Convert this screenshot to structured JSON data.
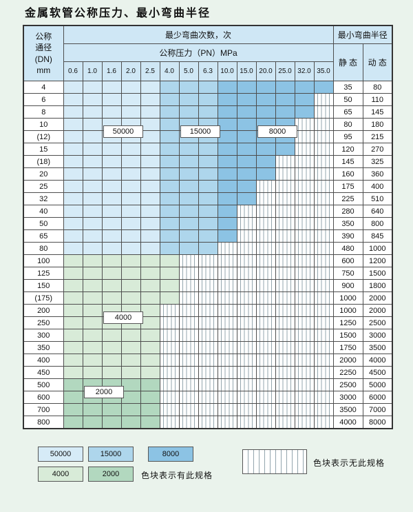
{
  "page": {
    "title": "金属软管公称压力、最小弯曲半径",
    "background_color": "#eaf3ec"
  },
  "table": {
    "header": {
      "dn_lines": [
        "公称",
        "通径",
        "(DN)",
        "mm"
      ],
      "bend_times_label": "最少弯曲次数，次",
      "pressure_label": "公称压力（PN）MPa",
      "min_radius_label": "最小弯曲半径",
      "static_label": "静 态",
      "dynamic_label": "动 态",
      "pressures": [
        "0.6",
        "1.0",
        "1.6",
        "2.0",
        "2.5",
        "4.0",
        "5.0",
        "6.3",
        "10.0",
        "15.0",
        "20.0",
        "25.0",
        "32.0",
        "35.0"
      ]
    },
    "zones": {
      "b1": {
        "label": "50000",
        "color": "#d6ebf7"
      },
      "b2": {
        "label": "15000",
        "color": "#aed6ec"
      },
      "b3": {
        "label": "8000",
        "color": "#8cc3e4"
      },
      "g1": {
        "label": "4000",
        "color": "#d8ebd8"
      },
      "g2": {
        "label": "2000",
        "color": "#b2d8bf"
      }
    },
    "no_spec_code": "x",
    "rows": [
      {
        "dn": "4",
        "static": "35",
        "dynamic": "80",
        "cells": [
          "b1",
          "b1",
          "b1",
          "b1",
          "b1",
          "b2",
          "b2",
          "b2",
          "b3",
          "b3",
          "b3",
          "b3",
          "b3",
          "b3"
        ]
      },
      {
        "dn": "6",
        "static": "50",
        "dynamic": "110",
        "cells": [
          "b1",
          "b1",
          "b1",
          "b1",
          "b1",
          "b2",
          "b2",
          "b2",
          "b3",
          "b3",
          "b3",
          "b3",
          "b3",
          "x"
        ]
      },
      {
        "dn": "8",
        "static": "65",
        "dynamic": "145",
        "cells": [
          "b1",
          "b1",
          "b1",
          "b1",
          "b1",
          "b2",
          "b2",
          "b2",
          "b3",
          "b3",
          "b3",
          "b3",
          "b3",
          "x"
        ]
      },
      {
        "dn": "10",
        "static": "80",
        "dynamic": "180",
        "cells": [
          "b1",
          "b1",
          "b1",
          "b1",
          "b1",
          "b2",
          "b2",
          "b2",
          "b3",
          "b3",
          "b3",
          "b3",
          "x",
          "x"
        ]
      },
      {
        "dn": "(12)",
        "static": "95",
        "dynamic": "215",
        "cells": [
          "b1",
          "b1",
          "b1",
          "b1",
          "b1",
          "b2",
          "b2",
          "b2",
          "b3",
          "b3",
          "b3",
          "b3",
          "x",
          "x"
        ]
      },
      {
        "dn": "15",
        "static": "120",
        "dynamic": "270",
        "cells": [
          "b1",
          "b1",
          "b1",
          "b1",
          "b1",
          "b2",
          "b2",
          "b2",
          "b3",
          "b3",
          "b3",
          "b3",
          "x",
          "x"
        ]
      },
      {
        "dn": "(18)",
        "static": "145",
        "dynamic": "325",
        "cells": [
          "b1",
          "b1",
          "b1",
          "b1",
          "b1",
          "b2",
          "b2",
          "b2",
          "b3",
          "b3",
          "b3",
          "x",
          "x",
          "x"
        ]
      },
      {
        "dn": "20",
        "static": "160",
        "dynamic": "360",
        "cells": [
          "b1",
          "b1",
          "b1",
          "b1",
          "b1",
          "b2",
          "b2",
          "b2",
          "b3",
          "b3",
          "b3",
          "x",
          "x",
          "x"
        ]
      },
      {
        "dn": "25",
        "static": "175",
        "dynamic": "400",
        "cells": [
          "b1",
          "b1",
          "b1",
          "b1",
          "b1",
          "b2",
          "b2",
          "b2",
          "b3",
          "b3",
          "x",
          "x",
          "x",
          "x"
        ]
      },
      {
        "dn": "32",
        "static": "225",
        "dynamic": "510",
        "cells": [
          "b1",
          "b1",
          "b1",
          "b1",
          "b1",
          "b2",
          "b2",
          "b2",
          "b3",
          "b3",
          "x",
          "x",
          "x",
          "x"
        ]
      },
      {
        "dn": "40",
        "static": "280",
        "dynamic": "640",
        "cells": [
          "b1",
          "b1",
          "b1",
          "b1",
          "b1",
          "b2",
          "b2",
          "b2",
          "b3",
          "x",
          "x",
          "x",
          "x",
          "x"
        ]
      },
      {
        "dn": "50",
        "static": "350",
        "dynamic": "800",
        "cells": [
          "b1",
          "b1",
          "b1",
          "b1",
          "b1",
          "b2",
          "b2",
          "b2",
          "b3",
          "x",
          "x",
          "x",
          "x",
          "x"
        ]
      },
      {
        "dn": "65",
        "static": "390",
        "dynamic": "845",
        "cells": [
          "b1",
          "b1",
          "b1",
          "b1",
          "b1",
          "b2",
          "b2",
          "b2",
          "b3",
          "x",
          "x",
          "x",
          "x",
          "x"
        ]
      },
      {
        "dn": "80",
        "static": "480",
        "dynamic": "1000",
        "cells": [
          "b1",
          "b1",
          "b1",
          "b1",
          "b1",
          "b2",
          "b2",
          "b2",
          "x",
          "x",
          "x",
          "x",
          "x",
          "x"
        ]
      },
      {
        "dn": "100",
        "static": "600",
        "dynamic": "1200",
        "cells": [
          "g1",
          "g1",
          "g1",
          "g1",
          "g1",
          "g1",
          "x",
          "x",
          "x",
          "x",
          "x",
          "x",
          "x",
          "x"
        ]
      },
      {
        "dn": "125",
        "static": "750",
        "dynamic": "1500",
        "cells": [
          "g1",
          "g1",
          "g1",
          "g1",
          "g1",
          "g1",
          "x",
          "x",
          "x",
          "x",
          "x",
          "x",
          "x",
          "x"
        ]
      },
      {
        "dn": "150",
        "static": "900",
        "dynamic": "1800",
        "cells": [
          "g1",
          "g1",
          "g1",
          "g1",
          "g1",
          "g1",
          "x",
          "x",
          "x",
          "x",
          "x",
          "x",
          "x",
          "x"
        ]
      },
      {
        "dn": "(175)",
        "static": "1000",
        "dynamic": "2000",
        "cells": [
          "g1",
          "g1",
          "g1",
          "g1",
          "g1",
          "g1",
          "x",
          "x",
          "x",
          "x",
          "x",
          "x",
          "x",
          "x"
        ]
      },
      {
        "dn": "200",
        "static": "1000",
        "dynamic": "2000",
        "cells": [
          "g1",
          "g1",
          "g1",
          "g1",
          "g1",
          "x",
          "x",
          "x",
          "x",
          "x",
          "x",
          "x",
          "x",
          "x"
        ]
      },
      {
        "dn": "250",
        "static": "1250",
        "dynamic": "2500",
        "cells": [
          "g1",
          "g1",
          "g1",
          "g1",
          "g1",
          "x",
          "x",
          "x",
          "x",
          "x",
          "x",
          "x",
          "x",
          "x"
        ]
      },
      {
        "dn": "300",
        "static": "1500",
        "dynamic": "3000",
        "cells": [
          "g1",
          "g1",
          "g1",
          "g1",
          "g1",
          "x",
          "x",
          "x",
          "x",
          "x",
          "x",
          "x",
          "x",
          "x"
        ]
      },
      {
        "dn": "350",
        "static": "1750",
        "dynamic": "3500",
        "cells": [
          "g1",
          "g1",
          "g1",
          "g1",
          "g1",
          "x",
          "x",
          "x",
          "x",
          "x",
          "x",
          "x",
          "x",
          "x"
        ]
      },
      {
        "dn": "400",
        "static": "2000",
        "dynamic": "4000",
        "cells": [
          "g1",
          "g1",
          "g1",
          "g1",
          "g1",
          "x",
          "x",
          "x",
          "x",
          "x",
          "x",
          "x",
          "x",
          "x"
        ]
      },
      {
        "dn": "450",
        "static": "2250",
        "dynamic": "4500",
        "cells": [
          "g1",
          "g1",
          "g1",
          "g1",
          "g1",
          "x",
          "x",
          "x",
          "x",
          "x",
          "x",
          "x",
          "x",
          "x"
        ]
      },
      {
        "dn": "500",
        "static": "2500",
        "dynamic": "5000",
        "cells": [
          "g2",
          "g2",
          "g2",
          "g2",
          "g2",
          "x",
          "x",
          "x",
          "x",
          "x",
          "x",
          "x",
          "x",
          "x"
        ]
      },
      {
        "dn": "600",
        "static": "3000",
        "dynamic": "6000",
        "cells": [
          "g2",
          "g2",
          "g2",
          "g2",
          "g2",
          "x",
          "x",
          "x",
          "x",
          "x",
          "x",
          "x",
          "x",
          "x"
        ]
      },
      {
        "dn": "700",
        "static": "3500",
        "dynamic": "7000",
        "cells": [
          "g2",
          "g2",
          "g2",
          "g2",
          "g2",
          "x",
          "x",
          "x",
          "x",
          "x",
          "x",
          "x",
          "x",
          "x"
        ]
      },
      {
        "dn": "800",
        "static": "4000",
        "dynamic": "8000",
        "cells": [
          "g2",
          "g2",
          "g2",
          "g2",
          "g2",
          "x",
          "x",
          "x",
          "x",
          "x",
          "x",
          "x",
          "x",
          "x"
        ]
      }
    ]
  },
  "legend": {
    "has_spec_text": "色块表示有此规格",
    "no_spec_text": "色块表示无此规格"
  }
}
